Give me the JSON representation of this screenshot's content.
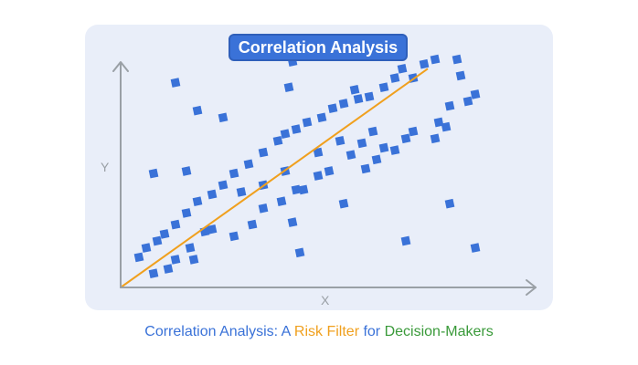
{
  "title": "Correlation Analysis",
  "caption": {
    "part1": "Correlation Analysis: A ",
    "part2": "Risk Filter",
    "part3": " for ",
    "part4": "Decision-Makers"
  },
  "colors": {
    "panel": "#e9eef9",
    "badge": "#3a72d8",
    "points": "#3a72d8",
    "trend_line": "#f0a01e",
    "axis": "#9aa0a6",
    "caption_blue": "#3a72d8",
    "caption_orange": "#f0a01e",
    "caption_green": "#3a9a3a"
  },
  "chart_data": {
    "type": "scatter",
    "xlabel": "X",
    "ylabel": "Y",
    "xlim": [
      0,
      100
    ],
    "ylim": [
      0,
      100
    ],
    "axis_ticks": false,
    "grid": false,
    "trend_line": {
      "x0": 0,
      "y0": 0,
      "x1": 84,
      "y1": 94
    },
    "points": [
      [
        9,
        6
      ],
      [
        13,
        8
      ],
      [
        15,
        12
      ],
      [
        20,
        12
      ],
      [
        19,
        17
      ],
      [
        23,
        24
      ],
      [
        25,
        25
      ],
      [
        31,
        22
      ],
      [
        36,
        27
      ],
      [
        39,
        34
      ],
      [
        44,
        37
      ],
      [
        48,
        42
      ],
      [
        50,
        42
      ],
      [
        54,
        48
      ],
      [
        57,
        50
      ],
      [
        63,
        57
      ],
      [
        67,
        51
      ],
      [
        70,
        55
      ],
      [
        75,
        59
      ],
      [
        72,
        60
      ],
      [
        78,
        64
      ],
      [
        80,
        67
      ],
      [
        86,
        64
      ],
      [
        87,
        71
      ],
      [
        90,
        78
      ],
      [
        95,
        80
      ],
      [
        97,
        83
      ],
      [
        89,
        69
      ],
      [
        5,
        13
      ],
      [
        7,
        17
      ],
      [
        10,
        20
      ],
      [
        12,
        23
      ],
      [
        15,
        27
      ],
      [
        18,
        32
      ],
      [
        21,
        37
      ],
      [
        25,
        40
      ],
      [
        28,
        44
      ],
      [
        31,
        49
      ],
      [
        35,
        53
      ],
      [
        39,
        58
      ],
      [
        43,
        63
      ],
      [
        45,
        66
      ],
      [
        48,
        68
      ],
      [
        51,
        71
      ],
      [
        55,
        73
      ],
      [
        58,
        77
      ],
      [
        61,
        79
      ],
      [
        64,
        85
      ],
      [
        65,
        81
      ],
      [
        68,
        82
      ],
      [
        72,
        86
      ],
      [
        75,
        90
      ],
      [
        77,
        94
      ],
      [
        80,
        90
      ],
      [
        83,
        96
      ],
      [
        86,
        98
      ],
      [
        92,
        98
      ],
      [
        93,
        91
      ],
      [
        45,
        50
      ],
      [
        60,
        63
      ],
      [
        66,
        62
      ],
      [
        69,
        67
      ],
      [
        54,
        58
      ],
      [
        39,
        44
      ],
      [
        33,
        41
      ],
      [
        18,
        50
      ],
      [
        9,
        49
      ],
      [
        15,
        88
      ],
      [
        21,
        76
      ],
      [
        28,
        73
      ],
      [
        47,
        97
      ],
      [
        46,
        86
      ],
      [
        47,
        28
      ],
      [
        49,
        15
      ],
      [
        61,
        36
      ],
      [
        78,
        20
      ],
      [
        90,
        36
      ],
      [
        97,
        17
      ]
    ]
  }
}
